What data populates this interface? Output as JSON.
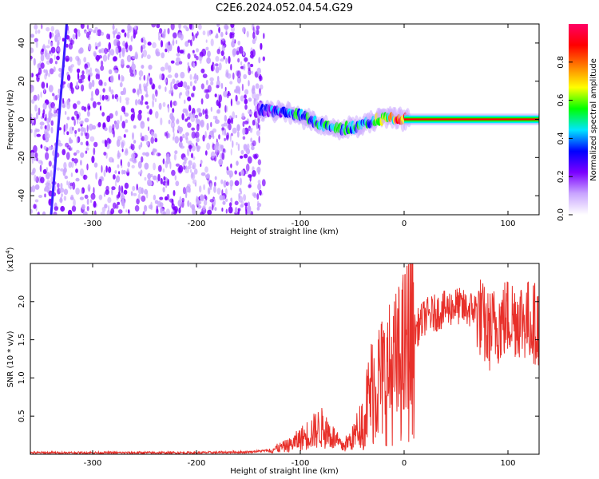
{
  "title": "C2E6.2024.052.04.54.G29",
  "colors": {
    "snr_line": "#e8302a",
    "axis": "#000000",
    "colormap": [
      "#ffffff",
      "#c9a5ff",
      "#7b00ff",
      "#0000ff",
      "#00e5ff",
      "#00ff00",
      "#ffff00",
      "#ff7f00",
      "#ff0000",
      "#ff0066"
    ]
  },
  "chart_data": [
    {
      "type": "heatmap",
      "xlabel": "Height of straight line (km)",
      "ylabel": "Frequency (Hz)",
      "xlim": [
        -360,
        130
      ],
      "ylim": [
        -50,
        50
      ],
      "xticks": [
        -300,
        -200,
        -100,
        0,
        100
      ],
      "xtick_labels": [
        "-300",
        "-200",
        "-100",
        "0",
        "100"
      ],
      "yticks": [
        -40,
        -20,
        0,
        20,
        40
      ],
      "ytick_labels": [
        "-40",
        "-20",
        "0",
        "20",
        "40"
      ],
      "colorbar": {
        "label": "Normalized spectral amplitude",
        "range": [
          0,
          1
        ],
        "ticks": [
          0.0,
          0.2,
          0.4,
          0.6,
          0.8
        ],
        "tick_labels": [
          "0.0",
          "0.2",
          "0.4",
          "0.6",
          "0.8"
        ]
      },
      "noise_region_x": [
        -360,
        -135
      ],
      "signal_track": {
        "x": [
          -140,
          -120,
          -100,
          -80,
          -60,
          -40,
          -25,
          -10,
          0,
          20,
          60,
          100,
          130
        ],
        "y": [
          5,
          4,
          2,
          -3,
          -5,
          -3,
          0,
          1,
          0,
          0,
          0,
          0,
          0
        ],
        "amplitude": [
          0.35,
          0.4,
          0.45,
          0.5,
          0.5,
          0.5,
          0.6,
          0.8,
          0.9,
          0.95,
          0.95,
          0.95,
          0.95
        ]
      },
      "diagonal_streak": {
        "x": [
          -340,
          -325
        ],
        "y": [
          -50,
          50
        ]
      },
      "grid": false
    },
    {
      "type": "line",
      "xlabel": "Height of straight line (km)",
      "ylabel": "SNR (10 * v/v)",
      "yscale_label": "(x10",
      "yscale_exp": "4",
      "yscale_close": ")",
      "xlim": [
        -360,
        130
      ],
      "ylim": [
        0,
        2.5
      ],
      "xticks": [
        -300,
        -200,
        -100,
        0,
        100
      ],
      "xtick_labels": [
        "-300",
        "-200",
        "-100",
        "0",
        "100"
      ],
      "yticks": [
        0.5,
        1.0,
        1.5,
        2.0
      ],
      "ytick_labels": [
        "0.5",
        "1.0",
        "1.5",
        "2.0"
      ],
      "series": [
        {
          "x": [
            -360,
            -300,
            -200,
            -150,
            -130,
            -110,
            -100,
            -90,
            -80,
            -70,
            -60,
            -50,
            -40,
            -30,
            -20,
            -10,
            0,
            10,
            20,
            30,
            40,
            50,
            60,
            70,
            80,
            90,
            100,
            110,
            120,
            130
          ],
          "y": [
            0.02,
            0.02,
            0.02,
            0.03,
            0.05,
            0.12,
            0.2,
            0.28,
            0.35,
            0.25,
            0.1,
            0.2,
            0.45,
            0.9,
            1.0,
            1.1,
            1.3,
            1.6,
            1.8,
            1.85,
            1.9,
            1.95,
            1.9,
            1.9,
            1.6,
            1.7,
            1.8,
            1.8,
            1.75,
            1.7
          ]
        }
      ],
      "grid": false
    }
  ]
}
